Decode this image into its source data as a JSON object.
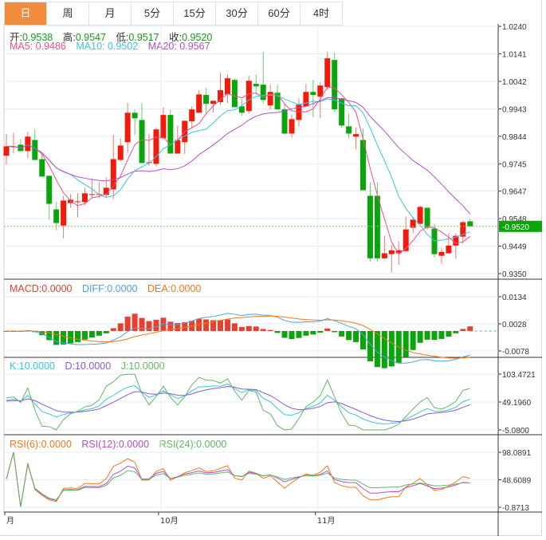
{
  "tabs": [
    {
      "label": "日",
      "active": true
    },
    {
      "label": "周"
    },
    {
      "label": "月"
    },
    {
      "label": "5分"
    },
    {
      "label": "15分"
    },
    {
      "label": "30分"
    },
    {
      "label": "60分"
    },
    {
      "label": "4时"
    }
  ],
  "ohlc_legend": {
    "open_label": "开:",
    "open": "0.9538",
    "high_label": "高:",
    "high": "0.9547",
    "low_label": "低:",
    "low": "0.9517",
    "close_label": "收:",
    "close": "0.9520"
  },
  "ma_legend": {
    "ma5": "MA5: 0.9486",
    "ma10": "MA10: 0.9502",
    "ma20": "MA20: 0.9567"
  },
  "macd_legend": {
    "macd": "MACD:0.0000",
    "diff": "DIFF:0.0000",
    "dea": "DEA:0.0000"
  },
  "kdj_legend": {
    "k": "K:10.0000",
    "d": "D:10.0000",
    "j": "J:10.0000"
  },
  "rsi_legend": {
    "rsi6": "RSI(6):0.0000",
    "rsi12": "RSI(12):0.0000",
    "rsi24": "RSI(24):0.0000"
  },
  "current_price": "0.9520",
  "colors": {
    "up": "#f21a0a",
    "down": "#0aa50a",
    "ma5": "#f0508a",
    "ma10": "#3cc4dc",
    "ma20": "#b050c8",
    "macd": "#e8402f",
    "diff": "#4aa3e8",
    "dea": "#f07820",
    "k": "#3cc4dc",
    "d": "#8a5cd0",
    "j": "#62b862",
    "rsi6": "#f07820",
    "rsi12": "#b050c8",
    "rsi24": "#62b862",
    "tab_active": "#f28b3c"
  },
  "chart_data": {
    "type": "candlestick",
    "x_labels": [
      {
        "index": 0,
        "label": "月"
      },
      {
        "index": 22,
        "label": "10月"
      },
      {
        "index": 44,
        "label": "11月"
      }
    ],
    "price_axis": {
      "ylim": [
        0.935,
        1.024
      ],
      "ticks": [
        "1.0240",
        "1.0141",
        "1.0042",
        "0.9943",
        "0.9844",
        "0.9745",
        "0.9647",
        "0.9548",
        "0.9449",
        "0.9350"
      ]
    },
    "macd_axis": {
      "ylim": [
        -0.0078,
        0.0134
      ],
      "ticks": [
        "0.0134",
        "0.0028",
        "-0.0078"
      ]
    },
    "kdj_axis": {
      "ylim": [
        -5.08,
        103.4721
      ],
      "ticks": [
        "103.4721",
        "49.1960",
        "-5.0800"
      ]
    },
    "rsi_axis": {
      "ylim": [
        -0.8713,
        98.0891
      ],
      "ticks": [
        "98.0891",
        "48.6089",
        "-0.8713"
      ]
    },
    "candles": [
      [
        0.9774,
        0.9808,
        0.9854,
        0.9742
      ],
      [
        0.9808,
        0.9808,
        0.9857,
        0.9782
      ],
      [
        0.9814,
        0.9791,
        0.9834,
        0.9791
      ],
      [
        0.9791,
        0.9843,
        0.986,
        0.9765
      ],
      [
        0.9831,
        0.9759,
        0.9869,
        0.9759
      ],
      [
        0.9762,
        0.9699,
        0.978,
        0.9699
      ],
      [
        0.9702,
        0.9601,
        0.9702,
        0.9544
      ],
      [
        0.9581,
        0.9532,
        0.9607,
        0.9506
      ],
      [
        0.9523,
        0.9613,
        0.963,
        0.9477
      ],
      [
        0.9604,
        0.9616,
        0.9636,
        0.9587
      ],
      [
        0.961,
        0.961,
        0.9639,
        0.9552
      ],
      [
        0.9607,
        0.9639,
        0.9659,
        0.9595
      ],
      [
        0.9636,
        0.9636,
        0.9693,
        0.9621
      ],
      [
        0.9636,
        0.9636,
        0.9679,
        0.9621
      ],
      [
        0.9633,
        0.9659,
        0.9696,
        0.9621
      ],
      [
        0.9653,
        0.9762,
        0.9849,
        0.9618
      ],
      [
        0.9759,
        0.9811,
        0.9837,
        0.9754
      ],
      [
        0.9823,
        0.9929,
        0.9964,
        0.9785
      ],
      [
        0.9929,
        0.9909,
        0.9941,
        0.9849
      ],
      [
        0.9903,
        0.9748,
        0.9964,
        0.9748
      ],
      [
        0.9751,
        0.9751,
        0.9854,
        0.9739
      ],
      [
        0.9745,
        0.9869,
        0.9875,
        0.9736
      ],
      [
        0.9837,
        0.9921,
        0.9949,
        0.9837
      ],
      [
        0.9921,
        0.9782,
        0.9941,
        0.9782
      ],
      [
        0.9782,
        0.9831,
        0.9883,
        0.9782
      ],
      [
        0.9823,
        0.99,
        0.99,
        0.978
      ],
      [
        0.9898,
        0.9941,
        0.9952,
        0.9875
      ],
      [
        0.9929,
        0.9995,
        1.001,
        0.9929
      ],
      [
        0.9993,
        0.9961,
        1.0018,
        0.9929
      ],
      [
        0.9961,
        0.9972,
        0.9972,
        0.9929
      ],
      [
        0.9967,
        1.001,
        1.0073,
        0.9958
      ],
      [
        0.9995,
        1.0053,
        1.0067,
        0.9964
      ],
      [
        1.0047,
        0.9949,
        1.0053,
        0.9949
      ],
      [
        0.9952,
        0.9929,
        0.9978,
        0.9918
      ],
      [
        0.9935,
        1.0044,
        1.0062,
        0.9926
      ],
      [
        1.0033,
        1.0024,
        1.0067,
        0.9995
      ],
      [
        1.003,
        0.9975,
        1.0148,
        0.9961
      ],
      [
        0.9955,
        1.0004,
        1.003,
        0.9941
      ],
      [
        1.0001,
        0.9941,
        1.003,
        0.9941
      ],
      [
        0.9941,
        0.9854,
        0.9961,
        0.9852
      ],
      [
        0.9854,
        0.9906,
        0.9923,
        0.984
      ],
      [
        0.9903,
        0.9958,
        0.9981,
        0.988
      ],
      [
        0.9952,
        1.0004,
        1.0033,
        0.9952
      ],
      [
        1.0004,
        0.9993,
        1.0047,
        0.9912
      ],
      [
        0.9987,
        1.0027,
        1.0039,
        0.9909
      ],
      [
        1.0021,
        1.0125,
        1.0148,
        1.001
      ],
      [
        1.0119,
        0.9941,
        1.0145,
        0.9932
      ],
      [
        0.9981,
        0.9883,
        0.9981,
        0.9875
      ],
      [
        0.988,
        0.9854,
        0.9926,
        0.9837
      ],
      [
        0.9843,
        0.9852,
        0.9875,
        0.9797
      ],
      [
        0.9831,
        0.965,
        0.9872,
        0.965
      ],
      [
        0.963,
        0.9405,
        0.9679,
        0.9394
      ],
      [
        0.963,
        0.9405,
        0.9679,
        0.9394
      ],
      [
        0.9405,
        0.9423,
        0.9486,
        0.94
      ],
      [
        0.942,
        0.9434,
        0.9454,
        0.9354
      ],
      [
        0.9423,
        0.9434,
        0.9466,
        0.9382
      ],
      [
        0.9431,
        0.9509,
        0.9555,
        0.9431
      ],
      [
        0.9515,
        0.9544,
        0.9552,
        0.9495
      ],
      [
        0.9529,
        0.959,
        0.9595,
        0.9529
      ],
      [
        0.9587,
        0.9515,
        0.9587,
        0.9509
      ],
      [
        0.9512,
        0.942,
        0.9529,
        0.9408
      ],
      [
        0.9414,
        0.9428,
        0.9443,
        0.9385
      ],
      [
        0.9423,
        0.9451,
        0.9495,
        0.9423
      ],
      [
        0.9451,
        0.9486,
        0.9495,
        0.9403
      ],
      [
        0.9483,
        0.9535,
        0.9541,
        0.9457
      ],
      [
        0.9538,
        0.952,
        0.9547,
        0.9517
      ]
    ]
  }
}
